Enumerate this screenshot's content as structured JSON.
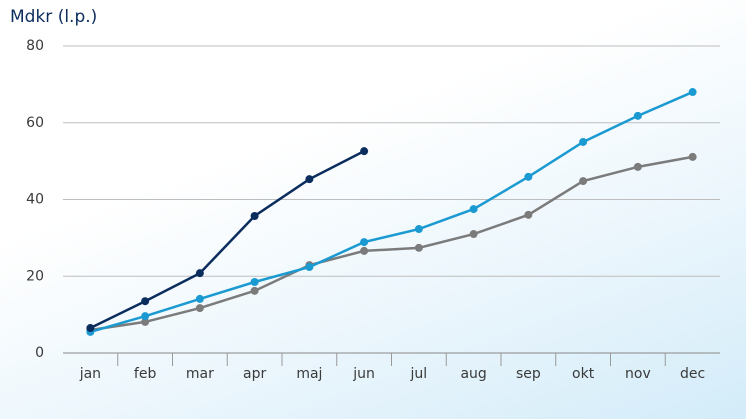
{
  "chart_data": {
    "type": "line",
    "title": "Mdkr (l.p.)",
    "categories": [
      "jan",
      "feb",
      "mar",
      "apr",
      "maj",
      "jun",
      "jul",
      "aug",
      "sep",
      "okt",
      "nov",
      "dec"
    ],
    "series": [
      {
        "color": "#7b7b7b",
        "values": [
          6.0,
          8.1,
          11.7,
          16.2,
          22.9,
          26.6,
          27.4,
          31.0,
          36.0,
          44.8,
          48.5,
          51.1
        ]
      },
      {
        "color": "#1b9ad2",
        "values": [
          5.5,
          9.6,
          14.1,
          18.5,
          22.4,
          28.9,
          32.3,
          37.5,
          45.9,
          55.0,
          61.8,
          68.0
        ]
      },
      {
        "color": "#0b2d5e",
        "values": [
          6.5,
          13.5,
          20.8,
          35.7,
          45.3,
          52.6,
          null,
          null,
          null,
          null,
          null,
          null
        ]
      }
    ],
    "ylim": [
      0,
      80
    ],
    "yticks": [
      0,
      20,
      40,
      60,
      80
    ],
    "grid": true
  }
}
